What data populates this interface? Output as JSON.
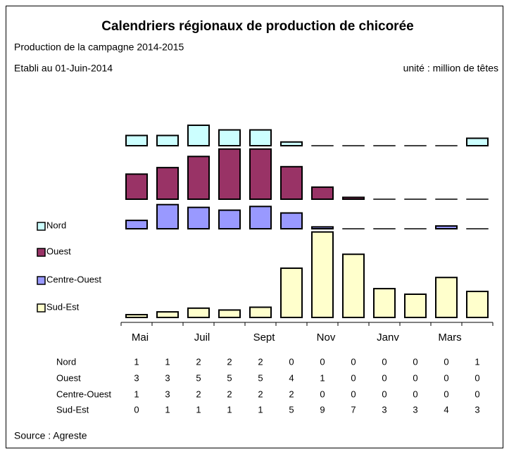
{
  "chart_data": {
    "type": "bar",
    "title": "Calendriers régionaux de production de chicorée",
    "subtitle": "Production de la campagne 2014-2015",
    "date_note": "Etabli au 01-Juin-2014",
    "unit_note": "unité : million de têtes",
    "source": "Source : Agreste",
    "categories": [
      "Mai",
      null,
      "Juil",
      null,
      "Sept",
      null,
      "Nov",
      null,
      "Janv",
      null,
      "Mars",
      null
    ],
    "series": [
      {
        "name": "Nord",
        "color": "#ccffff",
        "values": [
          1.1,
          1.1,
          2.2,
          1.7,
          1.7,
          0.4,
          0,
          0,
          0,
          0,
          0,
          0.8
        ],
        "value_labels": [
          "1",
          "1",
          "2",
          "2",
          "2",
          "0",
          "0",
          "0",
          "0",
          "0",
          "0",
          "1"
        ]
      },
      {
        "name": "Ouest",
        "color": "#993366",
        "values": [
          2.7,
          3.4,
          4.6,
          5.4,
          5.4,
          3.5,
          1.3,
          0.2,
          0,
          0,
          0,
          0
        ],
        "value_labels": [
          "3",
          "3",
          "5",
          "5",
          "5",
          "4",
          "1",
          "0",
          "0",
          "0",
          "0",
          "0"
        ]
      },
      {
        "name": "Centre-Ouest",
        "color": "#9999ff",
        "values": [
          0.9,
          2.6,
          2.3,
          2.0,
          2.4,
          1.7,
          0.2,
          0,
          0,
          0,
          0.3,
          0
        ],
        "value_labels": [
          "1",
          "3",
          "2",
          "2",
          "2",
          "2",
          "0",
          "0",
          "0",
          "0",
          "0",
          "0"
        ]
      },
      {
        "name": "Sud-Est",
        "color": "#ffffcc",
        "values": [
          0.3,
          0.6,
          1.0,
          0.8,
          1.1,
          5.3,
          9.2,
          6.8,
          3.1,
          2.5,
          4.3,
          2.8
        ],
        "value_labels": [
          "0",
          "1",
          "1",
          "1",
          "1",
          "5",
          "9",
          "7",
          "3",
          "3",
          "4",
          "3"
        ]
      }
    ]
  }
}
